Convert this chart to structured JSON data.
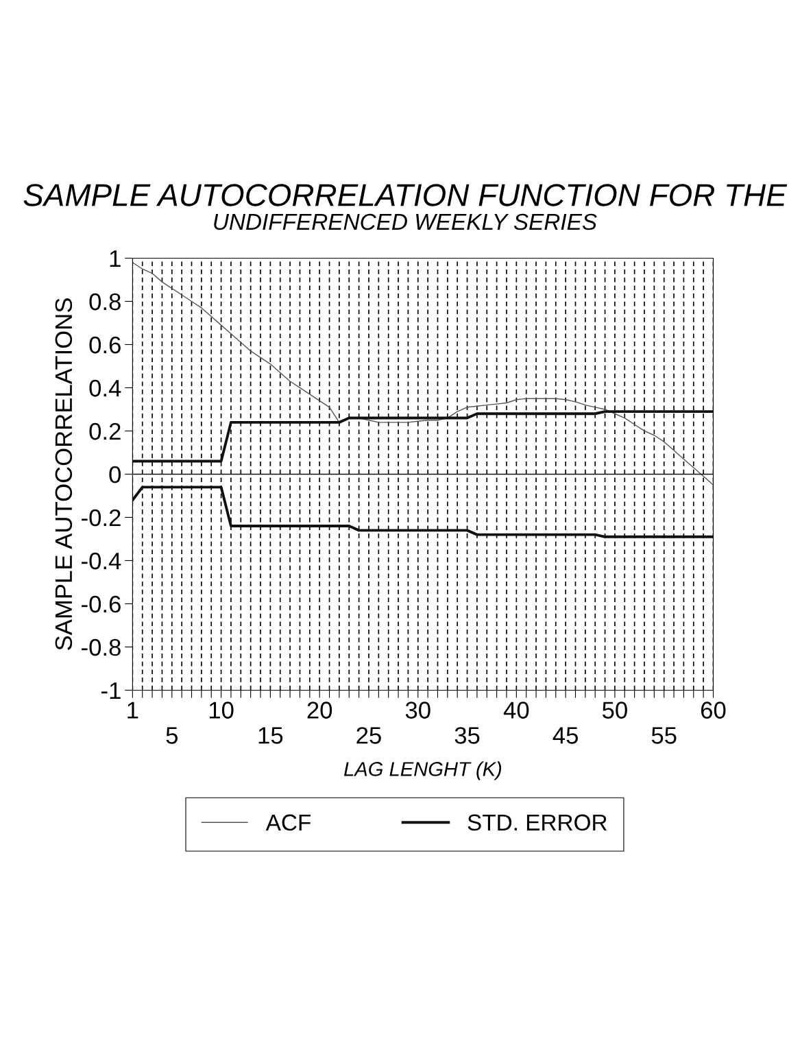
{
  "chart_data": {
    "type": "line",
    "title": "SAMPLE AUTOCORRELATION FUNCTION FOR THE",
    "subtitle": "UNDIFFERENCED WEEKLY SERIES",
    "xlabel": "LAG LENGHT (K)",
    "ylabel": "SAMPLE AUTOCORRELATIONS",
    "x": [
      1,
      2,
      3,
      4,
      5,
      6,
      7,
      8,
      9,
      10,
      11,
      12,
      13,
      14,
      15,
      16,
      17,
      18,
      19,
      20,
      21,
      22,
      23,
      24,
      25,
      26,
      27,
      28,
      29,
      30,
      31,
      32,
      33,
      34,
      35,
      36,
      37,
      38,
      39,
      40,
      41,
      42,
      43,
      44,
      45,
      46,
      47,
      48,
      49,
      50,
      51,
      52,
      53,
      54,
      55,
      56,
      57,
      58,
      59,
      60
    ],
    "series": [
      {
        "name": "ACF",
        "color": "#555555",
        "values": [
          0.98,
          0.95,
          0.93,
          0.89,
          0.86,
          0.83,
          0.8,
          0.77,
          0.73,
          0.69,
          0.65,
          0.61,
          0.57,
          0.54,
          0.51,
          0.47,
          0.43,
          0.4,
          0.37,
          0.34,
          0.31,
          0.24,
          0.26,
          0.26,
          0.25,
          0.24,
          0.24,
          0.24,
          0.24,
          0.245,
          0.25,
          0.25,
          0.26,
          0.29,
          0.31,
          0.315,
          0.32,
          0.325,
          0.33,
          0.345,
          0.35,
          0.35,
          0.35,
          0.35,
          0.345,
          0.335,
          0.32,
          0.31,
          0.3,
          0.28,
          0.26,
          0.23,
          0.2,
          0.18,
          0.15,
          0.11,
          0.07,
          0.03,
          -0.01,
          -0.05
        ]
      },
      {
        "name": "STD. ERROR",
        "color": "#111111",
        "values": [
          0.06,
          0.06,
          0.06,
          0.06,
          0.06,
          0.06,
          0.06,
          0.06,
          0.06,
          0.06,
          0.24,
          0.24,
          0.24,
          0.24,
          0.24,
          0.24,
          0.24,
          0.24,
          0.24,
          0.24,
          0.24,
          0.24,
          0.26,
          0.26,
          0.26,
          0.26,
          0.26,
          0.26,
          0.26,
          0.26,
          0.26,
          0.26,
          0.26,
          0.26,
          0.26,
          0.28,
          0.28,
          0.28,
          0.28,
          0.28,
          0.28,
          0.28,
          0.28,
          0.28,
          0.28,
          0.28,
          0.28,
          0.28,
          0.29,
          0.29,
          0.29,
          0.29,
          0.29,
          0.29,
          0.29,
          0.29,
          0.29,
          0.29,
          0.29,
          0.29
        ]
      },
      {
        "color": "#111111",
        "values": [
          -0.12,
          -0.06,
          -0.06,
          -0.06,
          -0.06,
          -0.06,
          -0.06,
          -0.06,
          -0.06,
          -0.06,
          -0.24,
          -0.24,
          -0.24,
          -0.24,
          -0.24,
          -0.24,
          -0.24,
          -0.24,
          -0.24,
          -0.24,
          -0.24,
          -0.24,
          -0.24,
          -0.26,
          -0.26,
          -0.26,
          -0.26,
          -0.26,
          -0.26,
          -0.26,
          -0.26,
          -0.26,
          -0.26,
          -0.26,
          -0.26,
          -0.28,
          -0.28,
          -0.28,
          -0.28,
          -0.28,
          -0.28,
          -0.28,
          -0.28,
          -0.28,
          -0.28,
          -0.28,
          -0.28,
          -0.28,
          -0.29,
          -0.29,
          -0.29,
          -0.29,
          -0.29,
          -0.29,
          -0.29,
          -0.29,
          -0.29,
          -0.29,
          -0.29,
          -0.29
        ]
      }
    ],
    "xlim": [
      1,
      60
    ],
    "xticks": [
      1,
      {
        "value": 2,
        "label": null
      },
      {
        "value": 3,
        "label": null
      },
      {
        "value": 4,
        "label": null
      },
      {
        "value": 5,
        "label": null
      },
      {
        "value": 6,
        "label": null
      },
      {
        "value": 7,
        "label": null
      },
      {
        "value": 8,
        "label": null
      },
      {
        "value": 9,
        "label": null
      },
      10,
      {
        "value": 11,
        "label": null
      },
      {
        "value": 12,
        "label": null
      },
      {
        "value": 13,
        "label": null
      },
      {
        "value": 14,
        "label": null
      },
      {
        "value": 15,
        "label": null
      },
      {
        "value": 16,
        "label": null
      },
      {
        "value": 17,
        "label": null
      },
      {
        "value": 18,
        "label": null
      },
      {
        "value": 19,
        "label": null
      },
      20,
      {
        "value": 21,
        "label": null
      },
      {
        "value": 22,
        "label": null
      },
      {
        "value": 23,
        "label": null
      },
      {
        "value": 24,
        "label": null
      },
      {
        "value": 25,
        "label": null
      },
      {
        "value": 26,
        "label": null
      },
      {
        "value": 27,
        "label": null
      },
      {
        "value": 28,
        "label": null
      },
      {
        "value": 29,
        "label": null
      },
      30,
      {
        "value": 31,
        "label": null
      },
      {
        "value": 32,
        "label": null
      },
      {
        "value": 33,
        "label": null
      },
      {
        "value": 34,
        "label": null
      },
      {
        "value": 35,
        "label": null
      },
      {
        "value": 36,
        "label": null
      },
      {
        "value": 37,
        "label": null
      },
      {
        "value": 38,
        "label": null
      },
      {
        "value": 39,
        "label": null
      },
      40,
      {
        "value": 41,
        "label": null
      },
      {
        "value": 42,
        "label": null
      },
      {
        "value": 43,
        "label": null
      },
      {
        "value": 44,
        "label": null
      },
      {
        "value": 45,
        "label": null
      },
      {
        "value": 46,
        "label": null
      },
      {
        "value": 47,
        "label": null
      },
      {
        "value": 48,
        "label": null
      },
      {
        "value": 49,
        "label": null
      },
      50,
      {
        "value": 51,
        "label": null
      },
      {
        "value": 52,
        "label": null
      },
      {
        "value": 53,
        "label": null
      },
      {
        "value": 54,
        "label": null
      },
      {
        "value": 55,
        "label": null
      },
      {
        "value": 56,
        "label": null
      },
      {
        "value": 57,
        "label": null
      },
      {
        "value": 58,
        "label": null
      },
      {
        "value": 59,
        "label": null
      },
      60
    ],
    "x2lim": [
      1,
      60
    ],
    "x2ticks": [
      5,
      15,
      25,
      35,
      45,
      55
    ],
    "ylim": [
      -1,
      1
    ],
    "yticks": [
      -1,
      -0.8,
      -0.6,
      -0.4,
      -0.2,
      0,
      0.2,
      0.4,
      0.6,
      0.8,
      1
    ],
    "ref_lines": [
      {
        "axis": "y",
        "value": 0,
        "color": "#111111"
      }
    ],
    "grid": "x",
    "legend": "bottom",
    "marker": "none",
    "line_style": "solid"
  }
}
